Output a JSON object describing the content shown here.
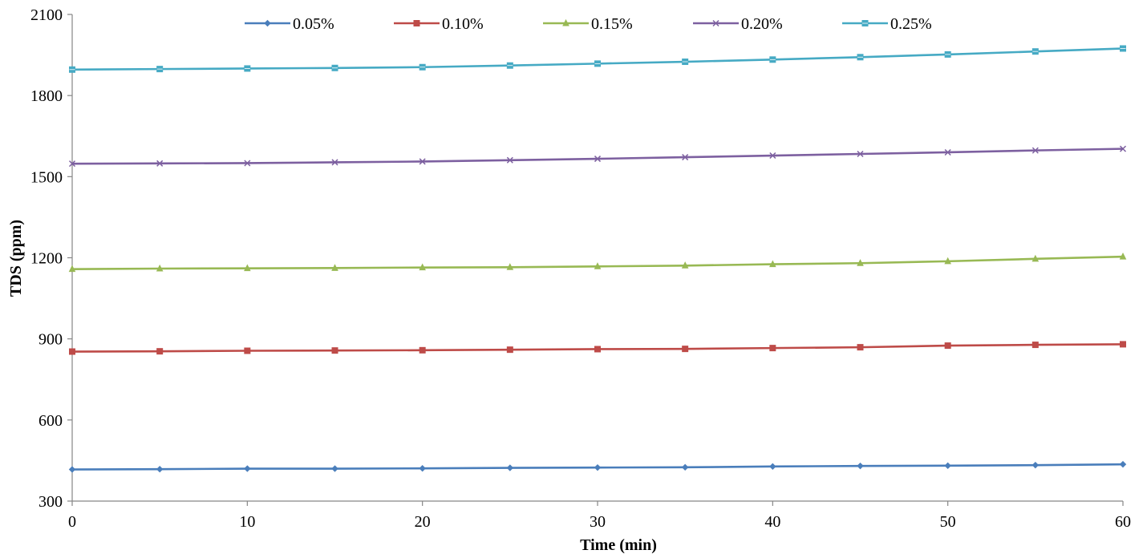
{
  "chart_data": {
    "type": "line",
    "title": "",
    "xlabel": "Time (min)",
    "ylabel": "TDS (ppm)",
    "x": [
      0,
      5,
      10,
      15,
      20,
      25,
      30,
      35,
      40,
      45,
      50,
      55,
      60
    ],
    "xlim": [
      0,
      60
    ],
    "ylim": [
      300,
      2100
    ],
    "xticks": [
      0,
      10,
      20,
      30,
      40,
      50,
      60
    ],
    "yticks": [
      300,
      600,
      900,
      1200,
      1500,
      1800,
      2100
    ],
    "grid": false,
    "legend_position": "top",
    "series": [
      {
        "name": "0.05%",
        "color": "#4a7ebb",
        "marker": "diamond",
        "values": [
          417,
          418,
          420,
          420,
          421,
          423,
          424,
          425,
          428,
          430,
          431,
          433,
          436
        ]
      },
      {
        "name": "0.10%",
        "color": "#be4b48",
        "marker": "square",
        "values": [
          853,
          854,
          856,
          857,
          858,
          860,
          862,
          863,
          866,
          869,
          875,
          878,
          880
        ]
      },
      {
        "name": "0.15%",
        "color": "#98b954",
        "marker": "triangle",
        "values": [
          1158,
          1160,
          1161,
          1162,
          1164,
          1165,
          1168,
          1171,
          1176,
          1180,
          1187,
          1196,
          1204
        ]
      },
      {
        "name": "0.20%",
        "color": "#7d60a0",
        "marker": "x",
        "values": [
          1548,
          1549,
          1550,
          1553,
          1556,
          1561,
          1566,
          1572,
          1578,
          1584,
          1590,
          1597,
          1603
        ]
      },
      {
        "name": "0.25%",
        "color": "#46aac4",
        "marker": "square-cross",
        "values": [
          1896,
          1898,
          1900,
          1902,
          1905,
          1911,
          1918,
          1925,
          1933,
          1942,
          1952,
          1963,
          1974
        ]
      }
    ]
  }
}
